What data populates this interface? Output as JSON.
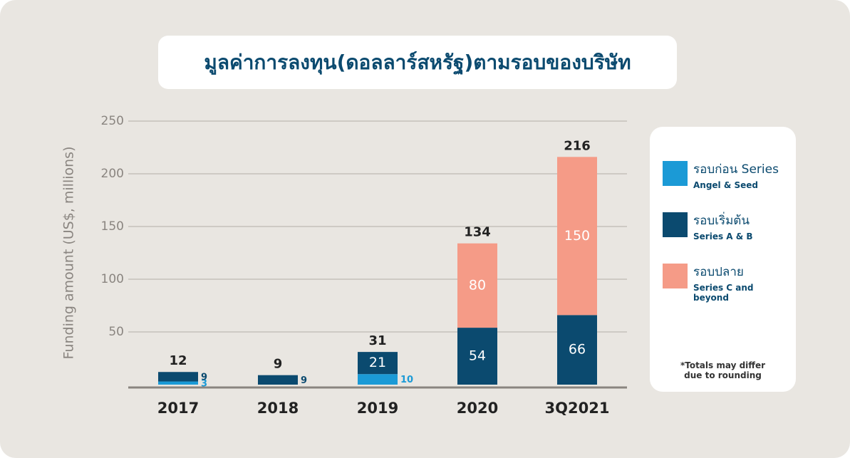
{
  "chart_data": {
    "type": "stacked_bar",
    "title": "มูลค่าการลงทุน(ดอลลาร์สหรัฐ)ตามรอบของบริษัท",
    "y_label": "Funding amount (US$, millions)",
    "categories": [
      "2017",
      "2018",
      "2019",
      "2020",
      "3Q2021"
    ],
    "series": [
      {
        "name": "รอบก่อน Series",
        "description": "Angel & Seed",
        "color": "#1b9ad6",
        "values": [
          3,
          null,
          10,
          null,
          null
        ]
      },
      {
        "name": "รอบเริ่มต้น",
        "description": "Series A & B",
        "color": "#0b4a6f",
        "values": [
          9,
          9,
          21,
          54,
          66
        ]
      },
      {
        "name": "รอบปลาย",
        "description": "Series C and beyond",
        "color": "#f59b87",
        "values": [
          null,
          null,
          null,
          80,
          150
        ]
      }
    ],
    "totals": [
      12,
      9,
      31,
      134,
      216
    ],
    "ylim": [
      0,
      250
    ],
    "yticks": [
      50,
      100,
      150,
      200,
      250
    ],
    "grid": true,
    "note": "*Totals may differ due to rounding"
  }
}
